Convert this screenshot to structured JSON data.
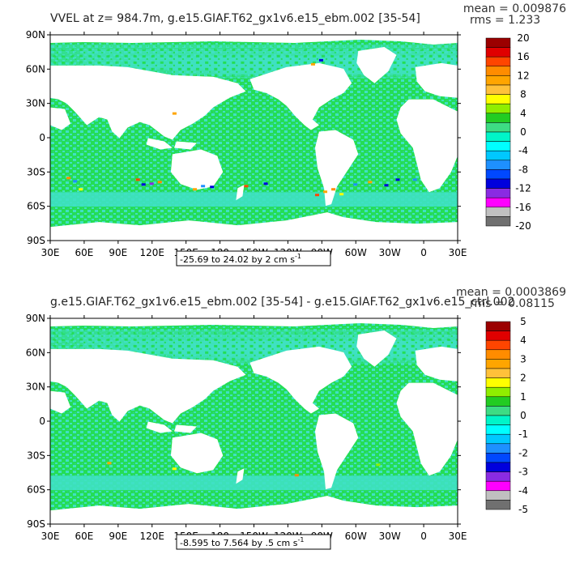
{
  "panels": [
    {
      "title": "VVEL at z= 984.7m, g.e15.GIAF.T62_gx1v6.e15_ebm.002 [35-54]",
      "mean": "mean = 0.009876",
      "rms": "rms = 1.233",
      "range_label": "-25.69 to 24.02 by 2 cm s",
      "range_sup": "-1",
      "colorbar_labels": [
        "20",
        "16",
        "12",
        "8",
        "4",
        "0",
        "-4",
        "-8",
        "-12",
        "-16",
        "-20"
      ],
      "hotspot_level": "high"
    },
    {
      "title": "g.e15.GIAF.T62_gx1v6.e15_ebm.002 [35-54] - g.e15.GIAF.T62_gx1v6.e15_ctrl.002",
      "mean": "mean = 0.0003869",
      "rms": "rms = 0.08115",
      "range_label": "-8.595 to 7.564 by .5 cm s",
      "range_sup": "-1",
      "colorbar_labels": [
        "5",
        "4",
        "3",
        "2",
        "1",
        "0",
        "-1",
        "-2",
        "-3",
        "-4",
        "-5"
      ],
      "hotspot_level": "low"
    }
  ],
  "lat_labels": [
    "90N",
    "60N",
    "30N",
    "0",
    "30S",
    "60S",
    "90S"
  ],
  "lon_labels": [
    "30E",
    "60E",
    "90E",
    "120E",
    "150E",
    "180",
    "150W",
    "120W",
    "90W",
    "60W",
    "30W",
    "0",
    "30E"
  ],
  "colorbar_colors": [
    "#9b0000",
    "#e00000",
    "#ff4500",
    "#ff8c00",
    "#ffa500",
    "#ffc13a",
    "#ffff00",
    "#90ee00",
    "#22cc22",
    "#3ddc84",
    "#00f5c8",
    "#00ffff",
    "#00c8ff",
    "#1e90ff",
    "#0048ff",
    "#0000dd",
    "#8a2be2",
    "#ff00ff",
    "#c0c0c0",
    "#707070"
  ],
  "colors": {
    "ocean_main": "#22dd55",
    "ocean_alt": "#3de0c8",
    "land": "#ffffff",
    "frame": "#000000"
  }
}
